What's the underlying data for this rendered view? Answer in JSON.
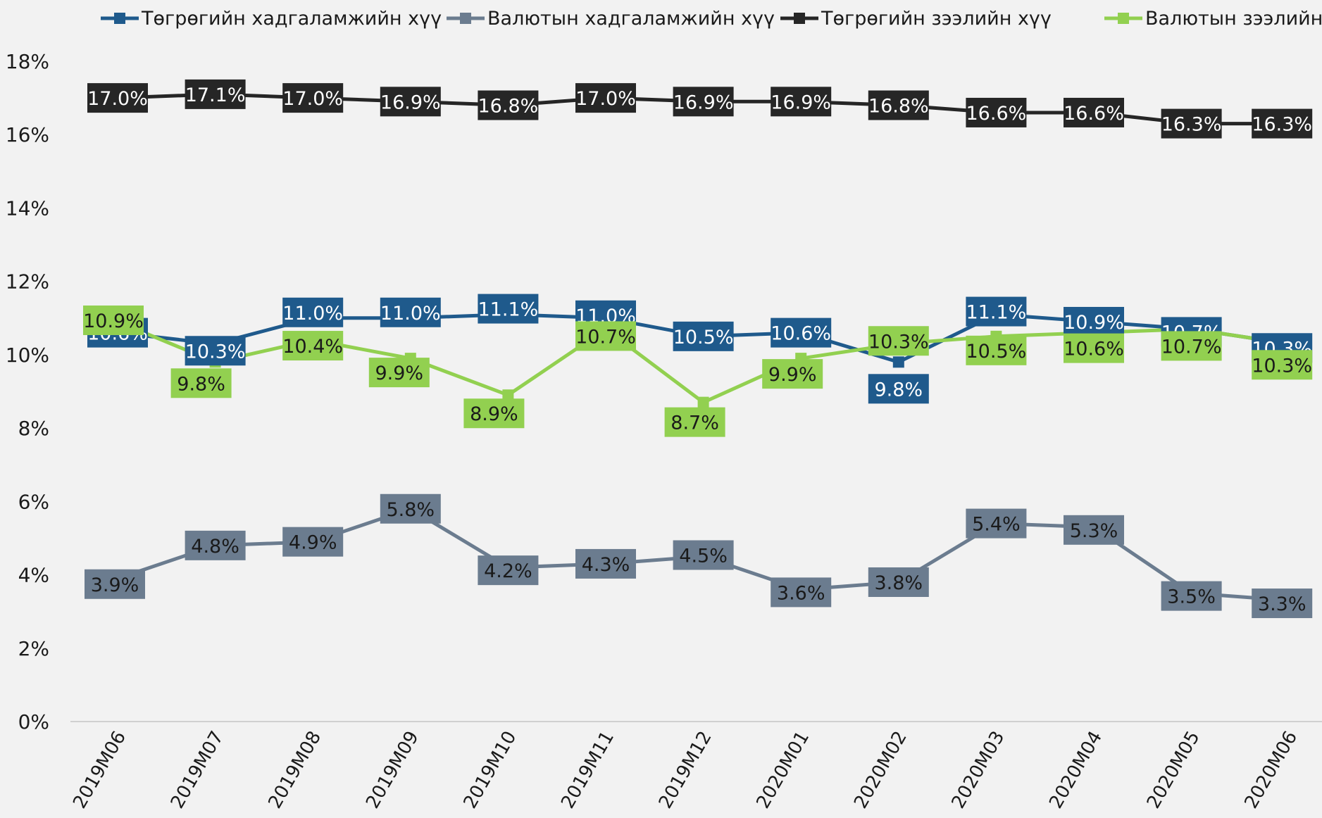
{
  "chart_data": {
    "type": "line",
    "title": "",
    "xlabel": "",
    "ylabel": "",
    "ylim": [
      0,
      18
    ],
    "yticks": [
      "0%",
      "2%",
      "4%",
      "6%",
      "8%",
      "10%",
      "12%",
      "14%",
      "16%",
      "18%"
    ],
    "grid": false,
    "legend_position": "top",
    "categories": [
      "2019M06",
      "2019M07",
      "2019M08",
      "2019M09",
      "2019M10",
      "2019M11",
      "2019M12",
      "2020M01",
      "2020M02",
      "2020M03",
      "2020M04",
      "2020M05",
      "2020M06"
    ],
    "series": [
      {
        "name": "Төгрөгийн хадгаламжийн хүү",
        "color": "#1f5a8c",
        "label_text_color": "#ffffff",
        "values": [
          10.6,
          10.3,
          11.0,
          11.0,
          11.1,
          11.0,
          10.5,
          10.6,
          9.8,
          11.1,
          10.9,
          10.7,
          10.3
        ],
        "labels": [
          "10.6%",
          "10.3%",
          "11.0%",
          "11.0%",
          "11.1%",
          "11.0%",
          "10.5%",
          "10.6%",
          "9.8%",
          "11.1%",
          "10.9%",
          "10.7%",
          "10.3%"
        ]
      },
      {
        "name": "Валютын хадгаламжийн хүү",
        "color": "#6b7c8f",
        "label_text_color": "#1a1a1a",
        "values": [
          3.9,
          4.8,
          4.9,
          5.8,
          4.2,
          4.3,
          4.5,
          3.6,
          3.8,
          5.4,
          5.3,
          3.5,
          3.3
        ],
        "labels": [
          "3.9%",
          "4.8%",
          "4.9%",
          "5.8%",
          "4.2%",
          "4.3%",
          "4.5%",
          "3.6%",
          "3.8%",
          "5.4%",
          "5.3%",
          "3.5%",
          "3.3%"
        ]
      },
      {
        "name": "Төгрөгийн зээлийн хүү",
        "color": "#262626",
        "label_text_color": "#ffffff",
        "values": [
          17.0,
          17.1,
          17.0,
          16.9,
          16.8,
          17.0,
          16.9,
          16.9,
          16.8,
          16.6,
          16.6,
          16.3,
          16.3
        ],
        "labels": [
          "17.0%",
          "17.1%",
          "17.0%",
          "16.9%",
          "16.8%",
          "17.0%",
          "16.9%",
          "16.9%",
          "16.8%",
          "16.6%",
          "16.6%",
          "16.3%",
          "16.3%"
        ]
      },
      {
        "name": "Валютын зээлийн хүү",
        "color": "#92d050",
        "label_text_color": "#1a1a1a",
        "values": [
          10.9,
          9.8,
          10.4,
          9.9,
          8.9,
          10.7,
          8.7,
          9.9,
          10.3,
          10.5,
          10.6,
          10.7,
          10.3
        ],
        "labels": [
          "10.9%",
          "9.8%",
          "10.4%",
          "9.9%",
          "8.9%",
          "10.7%",
          "8.7%",
          "9.9%",
          "10.3%",
          "10.5%",
          "10.6%",
          "10.7%",
          "10.3%"
        ]
      }
    ]
  }
}
